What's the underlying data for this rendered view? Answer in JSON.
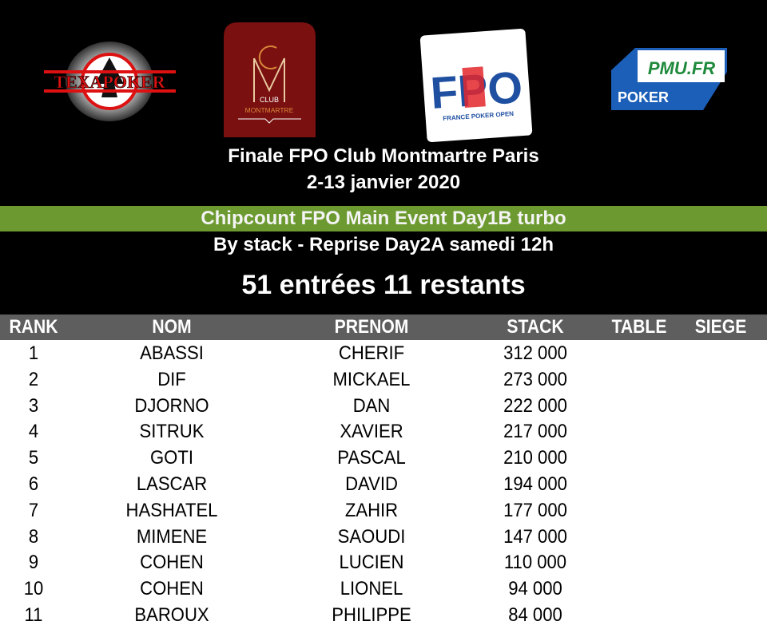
{
  "logos": {
    "texapoker": "TEXAPOKER",
    "club": "CLUB",
    "montmartre": "MONTMARTRE",
    "fpo": "FPO",
    "fpo_sub": "FRANCE POKER OPEN",
    "pmu": "PMU.FR",
    "pmu_sub": "POKER"
  },
  "header": {
    "title": "Finale FPO Club Montmartre Paris",
    "dates": "2-13 janvier 2020",
    "event": "Chipcount FPO Main Event Day1B turbo",
    "subtitle": "By stack - Reprise Day2A samedi 12h",
    "entries": "51 entrées 11 restants"
  },
  "colors": {
    "green": "#6c9a30",
    "header_gray": "#5e5e5e",
    "club_red": "#7a1010",
    "fpo_blue": "#1f4fa0",
    "fpo_red": "#e3262c",
    "pmu_green": "#1f8a3c"
  },
  "table": {
    "columns": [
      "RANK",
      "NOM",
      "PRENOM",
      "STACK",
      "TABLE",
      "SIEGE"
    ],
    "rows": [
      [
        "1",
        "ABASSI",
        "CHERIF",
        "312 000",
        "",
        ""
      ],
      [
        "2",
        "DIF",
        "MICKAEL",
        "273 000",
        "",
        ""
      ],
      [
        "3",
        "DJORNO",
        "DAN",
        "222 000",
        "",
        ""
      ],
      [
        "4",
        "SITRUK",
        "XAVIER",
        "217 000",
        "",
        ""
      ],
      [
        "5",
        "GOTI",
        "PASCAL",
        "210 000",
        "",
        ""
      ],
      [
        "6",
        "LASCAR",
        "DAVID",
        "194 000",
        "",
        ""
      ],
      [
        "7",
        "HASHATEL",
        "ZAHIR",
        "177 000",
        "",
        ""
      ],
      [
        "8",
        "MIMENE",
        "SAOUDI",
        "147 000",
        "",
        ""
      ],
      [
        "9",
        "COHEN",
        "LUCIEN",
        "110 000",
        "",
        ""
      ],
      [
        "10",
        "COHEN",
        "LIONEL",
        "94 000",
        "",
        ""
      ],
      [
        "11",
        "BAROUX",
        "PHILIPPE",
        "84 000",
        "",
        ""
      ]
    ]
  }
}
